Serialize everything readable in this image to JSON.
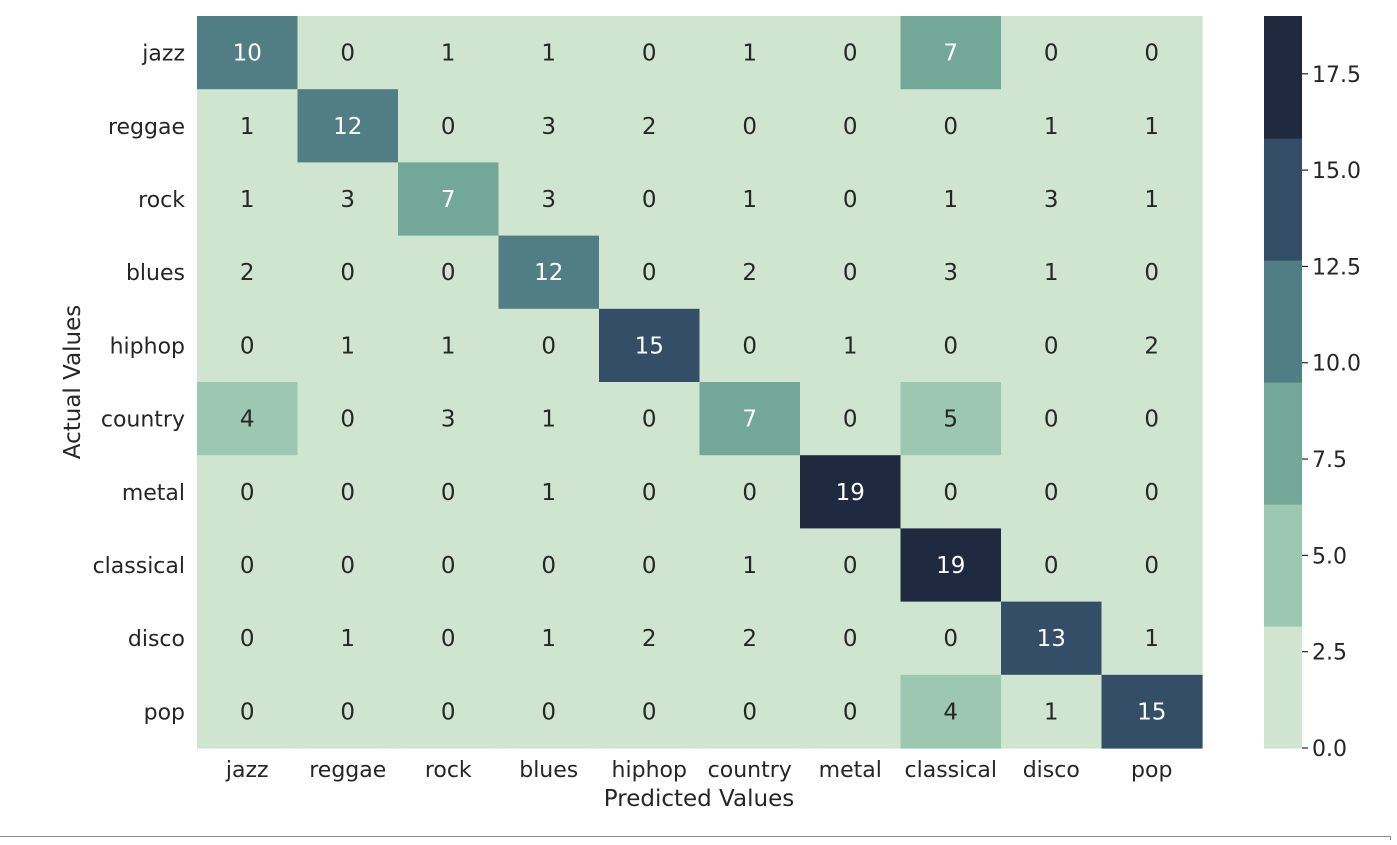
{
  "chart_data": {
    "type": "heatmap",
    "title": "",
    "xlabel": "Predicted Values",
    "ylabel": "Actual Values",
    "row_labels": [
      "jazz",
      "reggae",
      "rock",
      "blues",
      "hiphop",
      "country",
      "metal",
      "classical",
      "disco",
      "pop"
    ],
    "col_labels": [
      "jazz",
      "reggae",
      "rock",
      "blues",
      "hiphop",
      "country",
      "metal",
      "classical",
      "disco",
      "pop"
    ],
    "values": [
      [
        10,
        0,
        1,
        1,
        0,
        1,
        0,
        7,
        0,
        0
      ],
      [
        1,
        12,
        0,
        3,
        2,
        0,
        0,
        0,
        1,
        1
      ],
      [
        1,
        3,
        7,
        3,
        0,
        1,
        0,
        1,
        3,
        1
      ],
      [
        2,
        0,
        0,
        12,
        0,
        2,
        0,
        3,
        1,
        0
      ],
      [
        0,
        1,
        1,
        0,
        15,
        0,
        1,
        0,
        0,
        2
      ],
      [
        4,
        0,
        3,
        1,
        0,
        7,
        0,
        5,
        0,
        0
      ],
      [
        0,
        0,
        0,
        1,
        0,
        0,
        19,
        0,
        0,
        0
      ],
      [
        0,
        0,
        0,
        0,
        0,
        1,
        0,
        19,
        0,
        0
      ],
      [
        0,
        1,
        0,
        1,
        2,
        2,
        0,
        0,
        13,
        1
      ],
      [
        0,
        0,
        0,
        0,
        0,
        0,
        0,
        4,
        1,
        15
      ]
    ],
    "colorbar": {
      "range": [
        0,
        19
      ],
      "ticks": [
        0.0,
        2.5,
        5.0,
        7.5,
        10.0,
        12.5,
        15.0,
        17.5
      ],
      "tick_labels": [
        "0.0",
        "2.5",
        "5.0",
        "7.5",
        "10.0",
        "12.5",
        "15.0",
        "17.5"
      ],
      "levels": [
        "#cfe5d0",
        "#9cc7b0",
        "#73a899",
        "#517e84",
        "#344e67",
        "#1f2a40"
      ]
    },
    "annotation_colors": {
      "light_text": "#ffffff",
      "dark_text": "#262626"
    },
    "grid": false,
    "legend": "colorbar-right"
  }
}
